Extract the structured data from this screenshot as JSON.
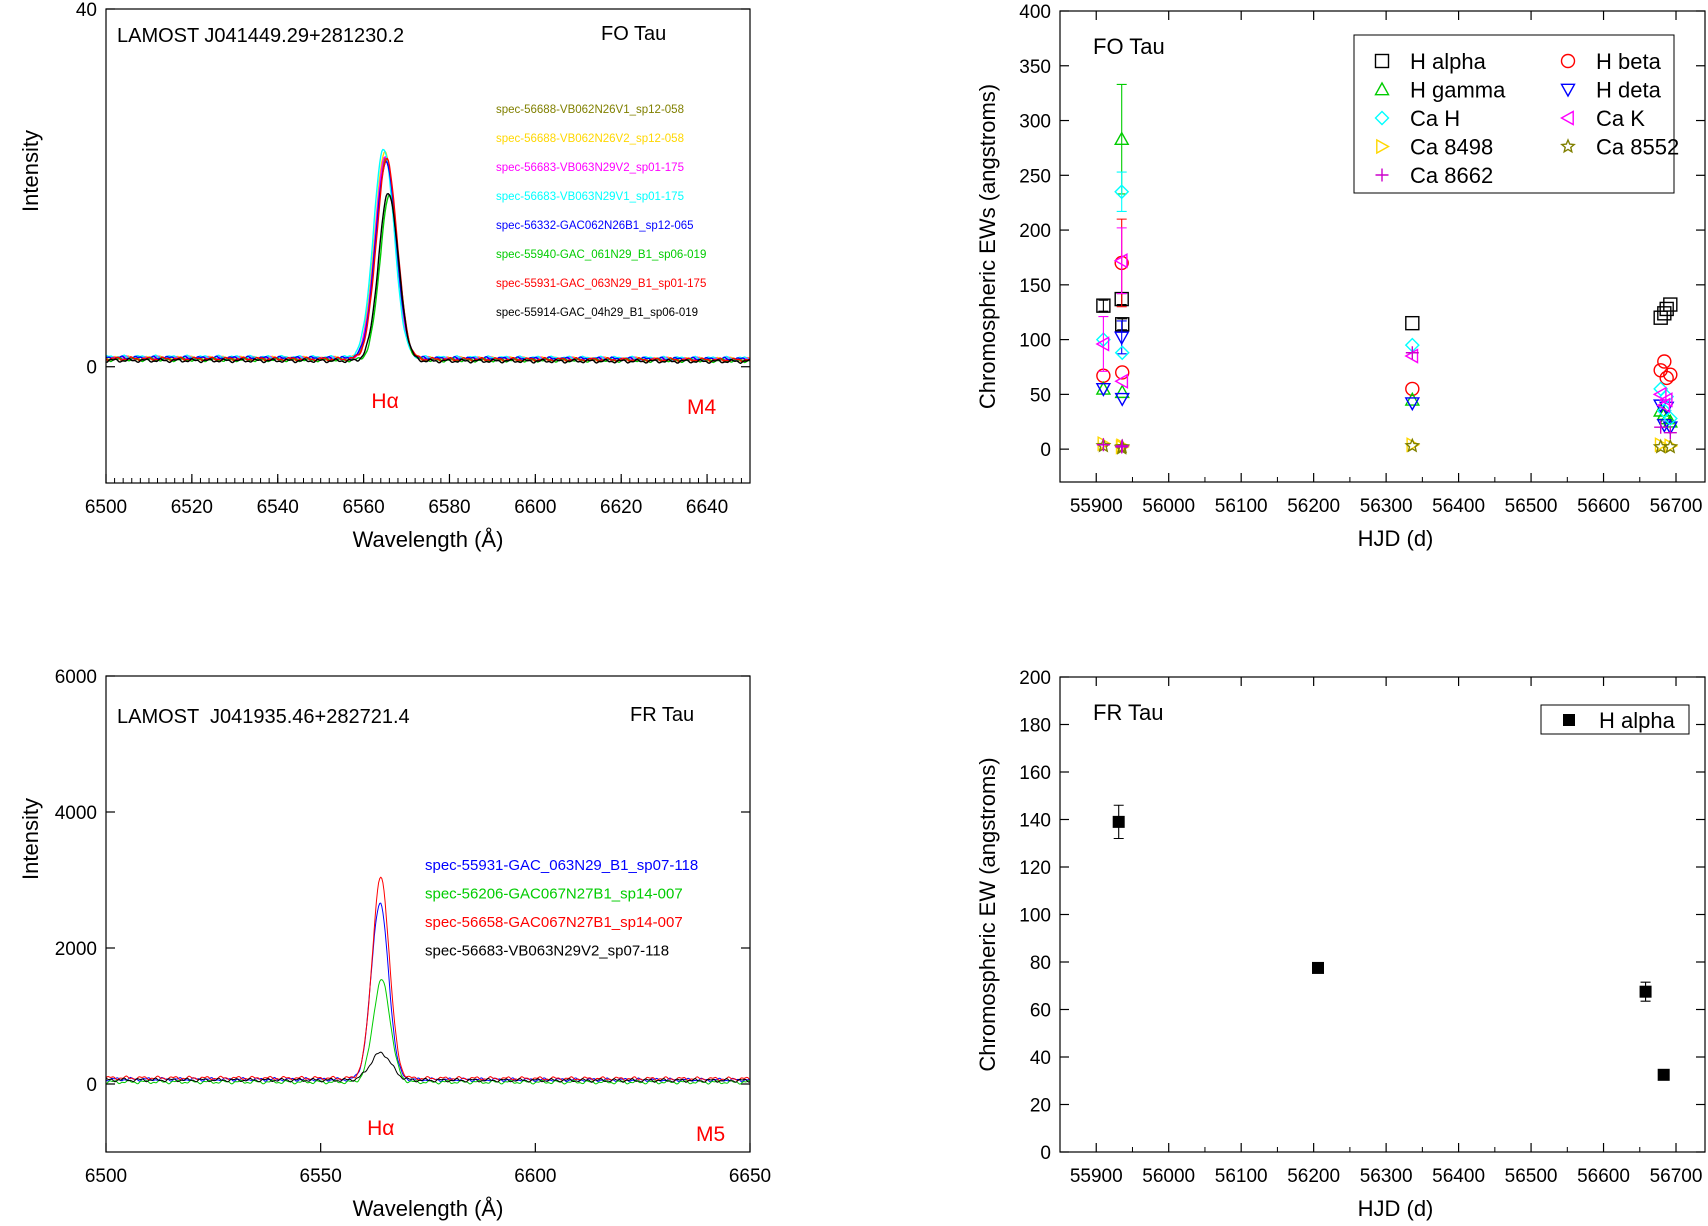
{
  "chart_data": [
    {
      "id": "fo-spectrum",
      "type": "line",
      "title": "LAMOST J041449.29+281230.2",
      "star": "FO Tau",
      "line_label": "Hα",
      "spectral_type": "M4",
      "xlabel": "Wavelength (Å)",
      "ylabel": "Intensity",
      "xlim": [
        6500,
        6650
      ],
      "ylim": [
        -13,
        40
      ],
      "xticks": [
        6500,
        6520,
        6540,
        6560,
        6580,
        6600,
        6620,
        6640
      ],
      "yticks": [
        0,
        40
      ],
      "minor_xstep": 2,
      "line_center": 6565,
      "series": [
        {
          "name": "spec-56688-VB062N26V1_sp12-058",
          "color": "#808000",
          "peak": 22.5,
          "baseline": 0.9,
          "center": 6565.2,
          "sigma": 2.4
        },
        {
          "name": "spec-56688-VB062N26V2_sp12-058",
          "color": "#ffd700",
          "peak": 23.0,
          "baseline": 1.0,
          "center": 6565.0,
          "sigma": 2.4
        },
        {
          "name": "spec-56683-VB063N29V2_sp01-175",
          "color": "#ff00ff",
          "peak": 22.6,
          "baseline": 1.0,
          "center": 6565.1,
          "sigma": 2.4
        },
        {
          "name": "spec-56683-VB063N29V1_sp01-175",
          "color": "#00ffff",
          "peak": 23.4,
          "baseline": 1.1,
          "center": 6564.7,
          "sigma": 2.4
        },
        {
          "name": "spec-56332-GAC062N26B1_sp12-065",
          "color": "#0000ff",
          "peak": 22.0,
          "baseline": 1.0,
          "center": 6565.2,
          "sigma": 2.4
        },
        {
          "name": "spec-55940-GAC_061N29_B1_sp06-019",
          "color": "#00cc00",
          "peak": 18.3,
          "baseline": 0.8,
          "center": 6566.0,
          "sigma": 2.2
        },
        {
          "name": "spec-55931-GAC_063N29_B1_sp01-175",
          "color": "#ff0000",
          "peak": 22.3,
          "baseline": 0.9,
          "center": 6565.4,
          "sigma": 2.4
        },
        {
          "name": "spec-55914-GAC_04h29_B1_sp06-019",
          "color": "#000000",
          "peak": 18.8,
          "baseline": 0.7,
          "center": 6565.8,
          "sigma": 2.3
        }
      ]
    },
    {
      "id": "fo-ews",
      "type": "scatter",
      "star": "FO Tau",
      "xlabel": "HJD (d)",
      "ylabel": "Chromospheric EWs (angstroms)",
      "xlim": [
        55850,
        56740
      ],
      "ylim": [
        -30,
        400
      ],
      "xticks": [
        55900,
        56000,
        56100,
        56200,
        56300,
        56400,
        56500,
        56600,
        56700
      ],
      "yticks": [
        0,
        50,
        100,
        150,
        200,
        250,
        300,
        350,
        400
      ],
      "series": [
        {
          "name": "H alpha",
          "marker": "square",
          "color": "#000000",
          "points": [
            [
              55914,
              131
            ],
            [
              55931,
              137
            ],
            [
              55940,
              114
            ],
            [
              56332,
              115
            ],
            [
              56683,
              120
            ],
            [
              56683,
              128
            ],
            [
              56688,
              124
            ],
            [
              56688,
              132
            ]
          ],
          "errors": [
            5,
            5,
            5,
            0,
            0,
            0,
            0,
            0
          ]
        },
        {
          "name": "H beta",
          "marker": "circle",
          "color": "#ff0000",
          "points": [
            [
              55914,
              67
            ],
            [
              55931,
              170
            ],
            [
              55940,
              70
            ],
            [
              56332,
              55
            ],
            [
              56683,
              72
            ],
            [
              56683,
              65
            ],
            [
              56688,
              80
            ],
            [
              56688,
              68
            ]
          ],
          "errors": [
            0,
            40,
            0,
            0,
            0,
            0,
            0,
            0
          ]
        },
        {
          "name": "H gamma",
          "marker": "triangle-up",
          "color": "#00cc00",
          "points": [
            [
              55914,
              55
            ],
            [
              55931,
              283
            ],
            [
              55940,
              52
            ],
            [
              56332,
              45
            ],
            [
              56683,
              35
            ],
            [
              56683,
              28
            ],
            [
              56688,
              32
            ],
            [
              56688,
              25
            ]
          ],
          "errors": [
            0,
            50,
            0,
            0,
            0,
            0,
            0,
            0
          ]
        },
        {
          "name": "H deta",
          "marker": "triangle-down",
          "color": "#0000ff",
          "points": [
            [
              55914,
              55
            ],
            [
              55931,
              102
            ],
            [
              55940,
              46
            ],
            [
              56332,
              42
            ],
            [
              56683,
              40
            ],
            [
              56683,
              38
            ],
            [
              56688,
              22
            ],
            [
              56688,
              20
            ]
          ],
          "errors": [
            0,
            15,
            0,
            0,
            0,
            0,
            0,
            0
          ]
        },
        {
          "name": "Ca H",
          "marker": "diamond",
          "color": "#00ffff",
          "points": [
            [
              55914,
              100
            ],
            [
              55931,
              235
            ],
            [
              55940,
              88
            ],
            [
              56332,
              95
            ],
            [
              56683,
              55
            ],
            [
              56683,
              48
            ],
            [
              56688,
              35
            ],
            [
              56688,
              28
            ]
          ],
          "errors": [
            0,
            18,
            0,
            0,
            0,
            0,
            0,
            0
          ]
        },
        {
          "name": "Ca K",
          "marker": "triangle-left",
          "color": "#ff00ff",
          "points": [
            [
              55914,
              96
            ],
            [
              55931,
              172
            ],
            [
              55940,
              62
            ],
            [
              56332,
              85
            ],
            [
              56683,
              50
            ],
            [
              56683,
              45
            ],
            [
              56688,
              40
            ]
          ],
          "errors": [
            25,
            30,
            0,
            0,
            0,
            0,
            0
          ]
        },
        {
          "name": "Ca 8498",
          "marker": "triangle-right",
          "color": "#ffd700",
          "points": [
            [
              55914,
              5
            ],
            [
              55931,
              2
            ],
            [
              55940,
              3
            ],
            [
              56332,
              4
            ],
            [
              56683,
              4
            ],
            [
              56688,
              3
            ]
          ],
          "errors": [
            0,
            0,
            0,
            0,
            0,
            0
          ]
        },
        {
          "name": "Ca 8552",
          "marker": "star",
          "color": "#808000",
          "points": [
            [
              55914,
              3
            ],
            [
              55931,
              1
            ],
            [
              55940,
              2
            ],
            [
              56332,
              3
            ],
            [
              56683,
              2
            ],
            [
              56688,
              2
            ]
          ],
          "errors": [
            0,
            0,
            0,
            0,
            0,
            0
          ]
        },
        {
          "name": "Ca 8662",
          "marker": "plus",
          "color": "#cc00cc",
          "points": [
            [
              55914,
              4
            ],
            [
              55931,
              2
            ],
            [
              55940,
              3
            ],
            [
              56332,
              88
            ],
            [
              56683,
              20
            ],
            [
              56688,
              15
            ]
          ],
          "errors": [
            0,
            0,
            0,
            0,
            0,
            0
          ]
        }
      ]
    },
    {
      "id": "fr-spectrum",
      "type": "line",
      "title": "LAMOST  J041935.46+282721.4",
      "star": "FR Tau",
      "line_label": "Hα",
      "spectral_type": "M5",
      "xlabel": "Wavelength (Å)",
      "ylabel": "Intensity",
      "xlim": [
        6500,
        6650
      ],
      "ylim": [
        -1000,
        6000
      ],
      "xticks": [
        6500,
        6550,
        6600,
        6650
      ],
      "yticks": [
        0,
        2000,
        4000,
        6000
      ],
      "line_center": 6564,
      "series": [
        {
          "name": "spec-55931-GAC_063N29_B1_sp07-118",
          "color": "#0000ff",
          "peak": 2600,
          "baseline": 70,
          "center": 6563.8,
          "sigma": 2.0
        },
        {
          "name": "spec-56206-GAC067N27B1_sp14-007",
          "color": "#00cc00",
          "peak": 1500,
          "baseline": 30,
          "center": 6564.2,
          "sigma": 2.0
        },
        {
          "name": "spec-56658-GAC067N27B1_sp14-007",
          "color": "#ff0000",
          "peak": 2950,
          "baseline": 90,
          "center": 6564.0,
          "sigma": 2.0
        },
        {
          "name": "spec-56683-VB063N29V2_sp07-118",
          "color": "#000000",
          "peak": 400,
          "baseline": 60,
          "center": 6564.0,
          "sigma": 2.4
        }
      ]
    },
    {
      "id": "fr-ews",
      "type": "scatter",
      "star": "FR Tau",
      "xlabel": "HJD (d)",
      "ylabel": "Chromospheric EW (angstroms)",
      "xlim": [
        55850,
        56740
      ],
      "ylim": [
        0,
        200
      ],
      "xticks": [
        55900,
        56000,
        56100,
        56200,
        56300,
        56400,
        56500,
        56600,
        56700
      ],
      "yticks": [
        0,
        20,
        40,
        60,
        80,
        100,
        120,
        140,
        160,
        180,
        200
      ],
      "series": [
        {
          "name": "H alpha",
          "marker": "filled-square",
          "color": "#000000",
          "points": [
            [
              55931,
              139
            ],
            [
              56206,
              77.5
            ],
            [
              56658,
              67.5
            ],
            [
              56683,
              32.5
            ]
          ],
          "errors": [
            7,
            0,
            4,
            0
          ]
        }
      ]
    }
  ]
}
